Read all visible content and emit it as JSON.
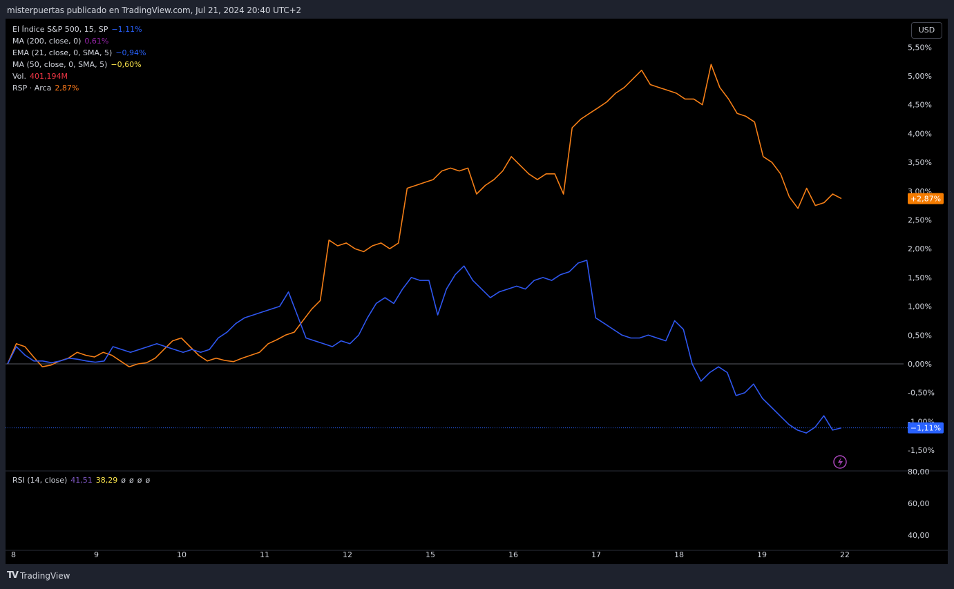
{
  "header": {
    "publish_line": "misterpuertas publicado en TradingView.com, Jul 21, 2024 20:40 UTC+2"
  },
  "currency_button": {
    "label": "USD"
  },
  "legend": [
    {
      "label": "El Índice S&P 500, 15, SP",
      "value": "−1,11%",
      "color": "#2962ff"
    },
    {
      "label": "MA (200, close, 0)",
      "value": "0,61%",
      "color": "#9c27b0"
    },
    {
      "label": "EMA (21, close, 0, SMA, 5)",
      "value": "−0,94%",
      "color": "#2962ff"
    },
    {
      "label": "MA (50, close, 0, SMA, 5)",
      "value": "−0,60%",
      "color": "#f9e34b"
    },
    {
      "label": "Vol.",
      "value": "401,194M",
      "color": "#f23645"
    },
    {
      "label": "RSP · Arca",
      "value": "2,87%",
      "color": "#ff7a1a"
    }
  ],
  "rsi_legend": {
    "label": "RSI (14, close)",
    "value1": "41,51",
    "value2": "38,29",
    "empty1": "ø",
    "empty2": "ø",
    "empty3": "ø",
    "empty4": "ø"
  },
  "footer": {
    "brand": "TradingView",
    "logo_text": "TV"
  },
  "colors": {
    "spx": "#2f57f0",
    "rsp": "#f57f17",
    "rsp_badge": "#f57c00",
    "spx_badge": "#2962ff",
    "background": "#000000",
    "frame": "#1e222d"
  },
  "chart_data": {
    "type": "line",
    "x_tick_labels": [
      "8",
      "9",
      "10",
      "11",
      "12",
      "15",
      "16",
      "17",
      "18",
      "19",
      "22"
    ],
    "y_tick_labels": [
      "5,50%",
      "5,00%",
      "4,50%",
      "4,00%",
      "3,50%",
      "3,00%",
      "2,50%",
      "2,00%",
      "1,50%",
      "1,00%",
      "0,50%",
      "0,00%",
      "-0,50%",
      "-1,00%",
      "-1,50%"
    ],
    "y_ticks": [
      5.5,
      5.0,
      4.5,
      4.0,
      3.5,
      3.0,
      2.5,
      2.0,
      1.5,
      1.0,
      0.5,
      0.0,
      -0.5,
      -1.0,
      -1.5
    ],
    "ylim": [
      -1.5,
      5.5
    ],
    "rsi_tick_labels": [
      "80,00",
      "60,00",
      "40,00"
    ],
    "rsi_ticks": [
      80,
      60,
      40
    ],
    "rsi_ylim": [
      30,
      80
    ],
    "zero_line": 0,
    "series": [
      {
        "name": "RSP · Arca",
        "last_label": "+2,87%",
        "last_value": 2.87,
        "values": [
          0.0,
          0.35,
          0.3,
          0.12,
          -0.05,
          -0.02,
          0.05,
          0.1,
          0.2,
          0.15,
          0.12,
          0.2,
          0.15,
          0.05,
          -0.05,
          0.0,
          0.02,
          0.1,
          0.25,
          0.4,
          0.45,
          0.3,
          0.15,
          0.05,
          0.1,
          0.06,
          0.04,
          0.1,
          0.15,
          0.2,
          0.35,
          0.42,
          0.5,
          0.55,
          0.75,
          0.95,
          1.1,
          2.15,
          2.05,
          2.1,
          2.0,
          1.95,
          2.05,
          2.1,
          2.0,
          2.1,
          3.05,
          3.1,
          3.15,
          3.2,
          3.35,
          3.4,
          3.35,
          3.4,
          2.95,
          3.1,
          3.2,
          3.35,
          3.6,
          3.45,
          3.3,
          3.2,
          3.3,
          3.3,
          2.95,
          4.1,
          4.25,
          4.35,
          4.45,
          4.55,
          4.7,
          4.8,
          4.95,
          5.1,
          4.85,
          4.8,
          4.75,
          4.7,
          4.6,
          4.6,
          4.5,
          5.2,
          4.8,
          4.6,
          4.35,
          4.3,
          4.2,
          3.6,
          3.5,
          3.3,
          2.9,
          2.7,
          3.05,
          2.75,
          2.8,
          2.95,
          2.87
        ]
      },
      {
        "name": "El Índice S&P 500",
        "last_label": "−1,11%",
        "last_value": -1.11,
        "values": [
          0.0,
          0.3,
          0.15,
          0.05,
          0.05,
          0.02,
          0.05,
          0.1,
          0.08,
          0.05,
          0.03,
          0.05,
          0.3,
          0.25,
          0.2,
          0.25,
          0.3,
          0.35,
          0.3,
          0.25,
          0.2,
          0.25,
          0.2,
          0.25,
          0.45,
          0.55,
          0.7,
          0.8,
          0.85,
          0.9,
          0.95,
          1.0,
          1.25,
          0.85,
          0.45,
          0.4,
          0.35,
          0.3,
          0.4,
          0.35,
          0.5,
          0.8,
          1.05,
          1.15,
          1.05,
          1.3,
          1.5,
          1.45,
          1.45,
          0.85,
          1.3,
          1.55,
          1.7,
          1.45,
          1.3,
          1.15,
          1.25,
          1.3,
          1.35,
          1.3,
          1.45,
          1.5,
          1.45,
          1.55,
          1.6,
          1.75,
          1.8,
          0.8,
          0.7,
          0.6,
          0.5,
          0.45,
          0.45,
          0.5,
          0.45,
          0.4,
          0.75,
          0.6,
          0.0,
          -0.3,
          -0.15,
          -0.05,
          -0.15,
          -0.55,
          -0.5,
          -0.35,
          -0.6,
          -0.75,
          -0.9,
          -1.05,
          -1.15,
          -1.2,
          -1.1,
          -0.9,
          -1.15,
          -1.11
        ]
      }
    ],
    "rsi_series": {
      "name": "RSI (14, close)",
      "values": []
    }
  }
}
